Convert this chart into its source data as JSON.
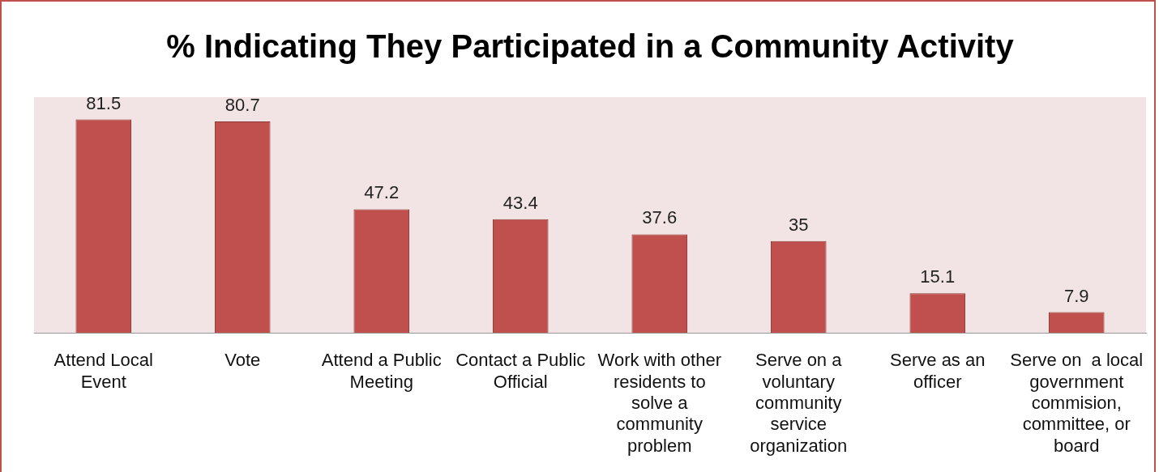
{
  "chart_data": {
    "type": "bar",
    "title": "% Indicating They Participated in a Community Activity",
    "categories": [
      "Attend Local Event",
      "Vote",
      "Attend a Public Meeting",
      "Contact a Public Official",
      "Work with other residents to solve a community problem",
      "Serve on a voluntary community service organization",
      "Serve as an officer",
      "Serve on  a local government commision, committee, or board"
    ],
    "values": [
      81.5,
      80.7,
      47.2,
      43.4,
      37.6,
      35,
      15.1,
      7.9
    ],
    "color": "#c0504d",
    "ylim": [
      0,
      90
    ],
    "data_labels": true,
    "tick_labels": "x"
  }
}
